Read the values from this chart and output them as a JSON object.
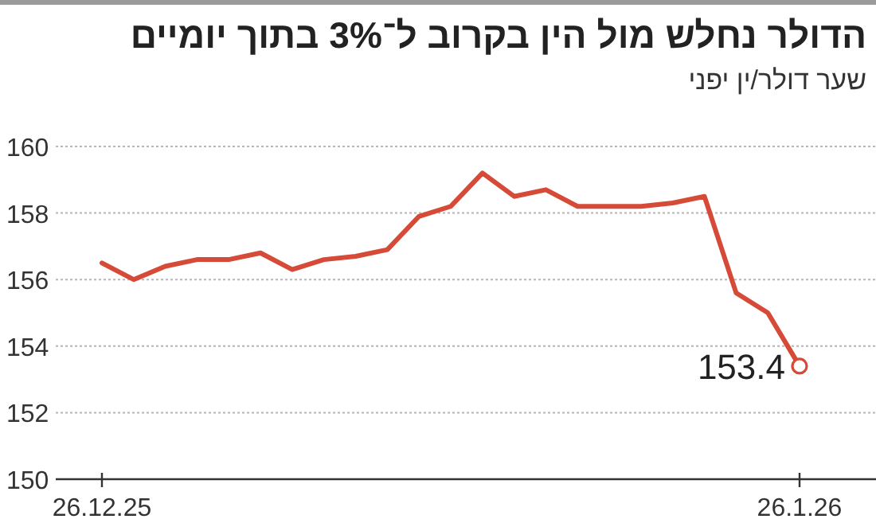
{
  "chart_data": {
    "type": "line",
    "title": "הדולר נחלש מול הין בקרוב ל־3% בתוך יומיים",
    "subtitle": "שער דולר/ין יפני",
    "categories": [
      "26.12.25",
      null,
      null,
      null,
      null,
      null,
      null,
      null,
      null,
      null,
      null,
      null,
      null,
      null,
      null,
      null,
      null,
      null,
      null,
      null,
      null,
      null,
      "26.1.26"
    ],
    "series": [
      {
        "type": "line",
        "color": "#d64a38",
        "values": [
          156.5,
          156.0,
          156.4,
          156.6,
          156.6,
          156.8,
          156.3,
          156.6,
          156.7,
          156.9,
          157.9,
          158.2,
          159.2,
          158.5,
          158.7,
          158.2,
          158.2,
          158.2,
          158.3,
          158.5,
          155.6,
          155.0,
          153.4
        ]
      },
      {
        "type": "scatter",
        "color": "#d64a38",
        "marker": "circle",
        "values": [
          null,
          null,
          null,
          null,
          null,
          null,
          null,
          null,
          null,
          null,
          null,
          null,
          null,
          null,
          null,
          null,
          null,
          null,
          null,
          null,
          null,
          null,
          153.4
        ]
      }
    ],
    "ylim": [
      150,
      160
    ],
    "yticks": [
      150,
      152,
      154,
      156,
      158,
      160
    ],
    "grid": "y",
    "annotations": [
      {
        "text": "153.4",
        "x": "26.1.26",
        "y": 153.4
      }
    ]
  }
}
